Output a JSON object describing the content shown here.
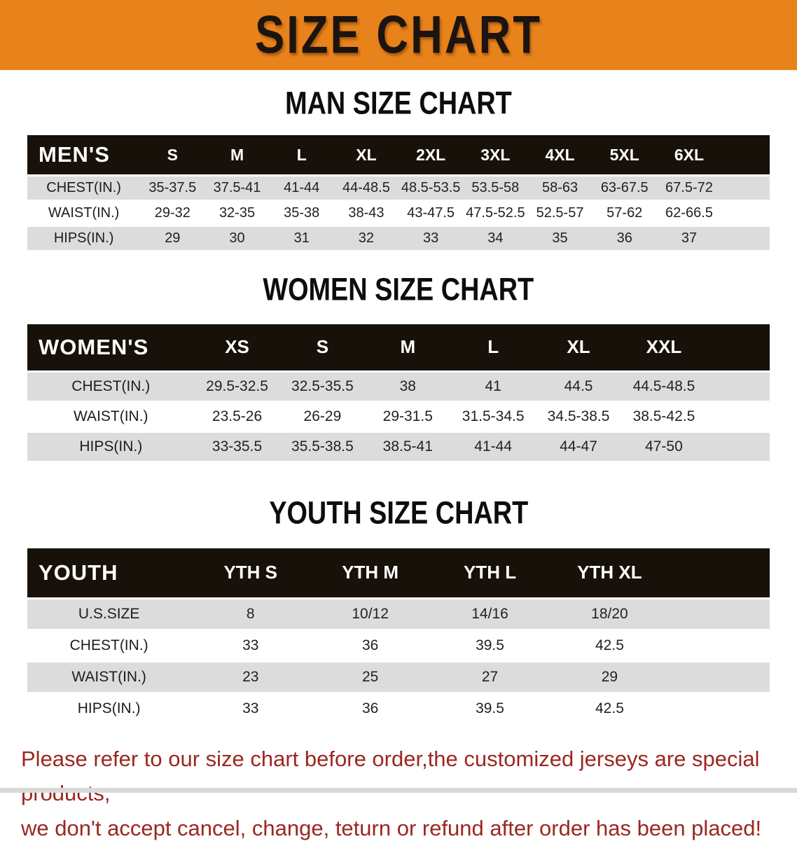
{
  "banner": {
    "title": "SIZE CHART",
    "bg_color": "#E8821A",
    "text_color": "#1B1410"
  },
  "sections": [
    {
      "heading": "MAN SIZE CHART",
      "table": {
        "label": "MEN'S",
        "columns": [
          "S",
          "M",
          "L",
          "XL",
          "2XL",
          "3XL",
          "4XL",
          "5XL",
          "6XL"
        ],
        "rows": [
          {
            "label": "CHEST(IN.)",
            "values": [
              "35-37.5",
              "37.5-41",
              "41-44",
              "44-48.5",
              "48.5-53.5",
              "53.5-58",
              "58-63",
              "63-67.5",
              "67.5-72"
            ]
          },
          {
            "label": "WAIST(IN.)",
            "values": [
              "29-32",
              "32-35",
              "35-38",
              "38-43",
              "43-47.5",
              "47.5-52.5",
              "52.5-57",
              "57-62",
              "62-66.5"
            ]
          },
          {
            "label": "HIPS(IN.)",
            "values": [
              "29",
              "30",
              "31",
              "32",
              "33",
              "34",
              "35",
              "36",
              "37"
            ]
          }
        ]
      }
    },
    {
      "heading": "WOMEN SIZE CHART",
      "table": {
        "label": "WOMEN'S",
        "columns": [
          "XS",
          "S",
          "M",
          "L",
          "XL",
          "XXL"
        ],
        "rows": [
          {
            "label": "CHEST(IN.)",
            "values": [
              "29.5-32.5",
              "32.5-35.5",
              "38",
              "41",
              "44.5",
              "44.5-48.5"
            ]
          },
          {
            "label": "WAIST(IN.)",
            "values": [
              "23.5-26",
              "26-29",
              "29-31.5",
              "31.5-34.5",
              "34.5-38.5",
              "38.5-42.5"
            ]
          },
          {
            "label": "HIPS(IN.)",
            "values": [
              "33-35.5",
              "35.5-38.5",
              "38.5-41",
              "41-44",
              "44-47",
              "47-50"
            ]
          }
        ]
      }
    },
    {
      "heading": "YOUTH SIZE CHART",
      "table": {
        "label": "YOUTH",
        "columns": [
          "YTH S",
          "YTH M",
          "YTH L",
          "YTH XL"
        ],
        "rows": [
          {
            "label": "U.S.SIZE",
            "values": [
              "8",
              "10/12",
              "14/16",
              "18/20"
            ]
          },
          {
            "label": "CHEST(IN.)",
            "values": [
              "33",
              "36",
              "39.5",
              "42.5"
            ]
          },
          {
            "label": "WAIST(IN.)",
            "values": [
              "23",
              "25",
              "27",
              "29"
            ]
          },
          {
            "label": "HIPS(IN.)",
            "values": [
              "33",
              "36",
              "39.5",
              "42.5"
            ]
          }
        ]
      }
    }
  ],
  "footer": {
    "lines": [
      "Please refer to our size chart before order,the customized jerseys are special products,",
      "we don't accept cancel, change, teturn or refund after order has been placed!"
    ],
    "text_color": "#9C2720"
  },
  "colors": {
    "banner_orange": "#E8821A",
    "header_black": "#181109",
    "row_gray": "#DCDCDC",
    "note_red": "#9C2720"
  }
}
